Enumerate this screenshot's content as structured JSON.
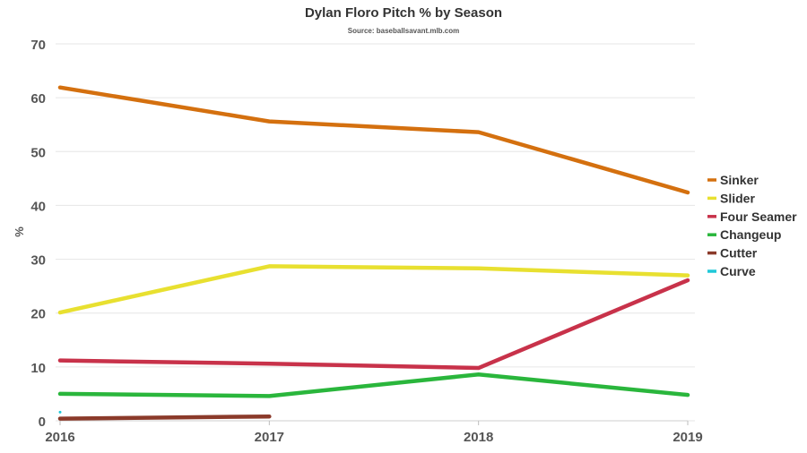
{
  "chart_data": {
    "type": "line",
    "title": "Dylan Floro Pitch % by Season",
    "subtitle": "Source: baseballsavant.mlb.com",
    "xlabel": "",
    "ylabel": "%",
    "categories": [
      "2016",
      "2017",
      "2018",
      "2019"
    ],
    "ylim": [
      0,
      70
    ],
    "yticks": [
      0,
      10,
      20,
      30,
      40,
      50,
      60,
      70
    ],
    "grid": true,
    "legend_position": "right",
    "series": [
      {
        "name": "Sinker",
        "color": "#d4700f",
        "values": [
          61.9,
          55.6,
          53.6,
          42.4
        ]
      },
      {
        "name": "Slider",
        "color": "#e8e030",
        "values": [
          20.1,
          28.7,
          28.3,
          27.0
        ]
      },
      {
        "name": "Four Seamer",
        "color": "#c8324a",
        "values": [
          11.2,
          10.6,
          9.8,
          26.1
        ]
      },
      {
        "name": "Changeup",
        "color": "#2ab63c",
        "values": [
          5.0,
          4.6,
          8.6,
          4.8
        ]
      },
      {
        "name": "Cutter",
        "color": "#8b3a2a",
        "values": [
          0.4,
          0.8,
          null,
          null
        ]
      },
      {
        "name": "Curve",
        "color": "#1fc8d8",
        "values": [
          1.6,
          null,
          null,
          null
        ]
      }
    ]
  }
}
